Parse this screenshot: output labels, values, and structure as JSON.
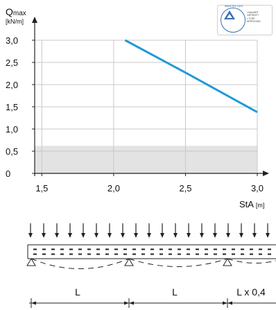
{
  "chart_data": {
    "type": "line",
    "title": "",
    "ylabel_main": "Q",
    "ylabel_sub": "max",
    "ylabel_unit": "[kN/m]",
    "xlabel": "StA",
    "xlabel_unit": "[m]",
    "xlim": [
      1.45,
      3.0
    ],
    "ylim": [
      0,
      3.0
    ],
    "x_ticks": [
      1.5,
      2.0,
      2.5,
      3.0
    ],
    "x_tick_labels": [
      "1,5",
      "2,0",
      "2,5",
      "3,0"
    ],
    "y_ticks": [
      0,
      0.5,
      1.0,
      1.5,
      2.0,
      2.5,
      3.0
    ],
    "y_tick_labels": [
      "0",
      "0,5",
      "1,0",
      "1,5",
      "2,0",
      "2,5",
      "3,0"
    ],
    "grid": true,
    "series": [
      {
        "x": [
          2.08,
          2.5,
          3.0
        ],
        "values": [
          3.0,
          2.27,
          1.38
        ],
        "color": "#1e9bd8"
      }
    ],
    "shaded_band": {
      "y_from": 0,
      "y_to": 0.62,
      "color": "#e3e3e3"
    }
  },
  "badge": {
    "seal_text": "www.tuv.com",
    "lines": [
      "• BAUART",
      "  GEPRÜFT",
      "• TYPE",
      "  APPROVED"
    ]
  },
  "diagram": {
    "span_labels": [
      "L",
      "L",
      "L x 0,4"
    ],
    "arrow_count": 19,
    "colors": {
      "line": "#222222"
    }
  }
}
